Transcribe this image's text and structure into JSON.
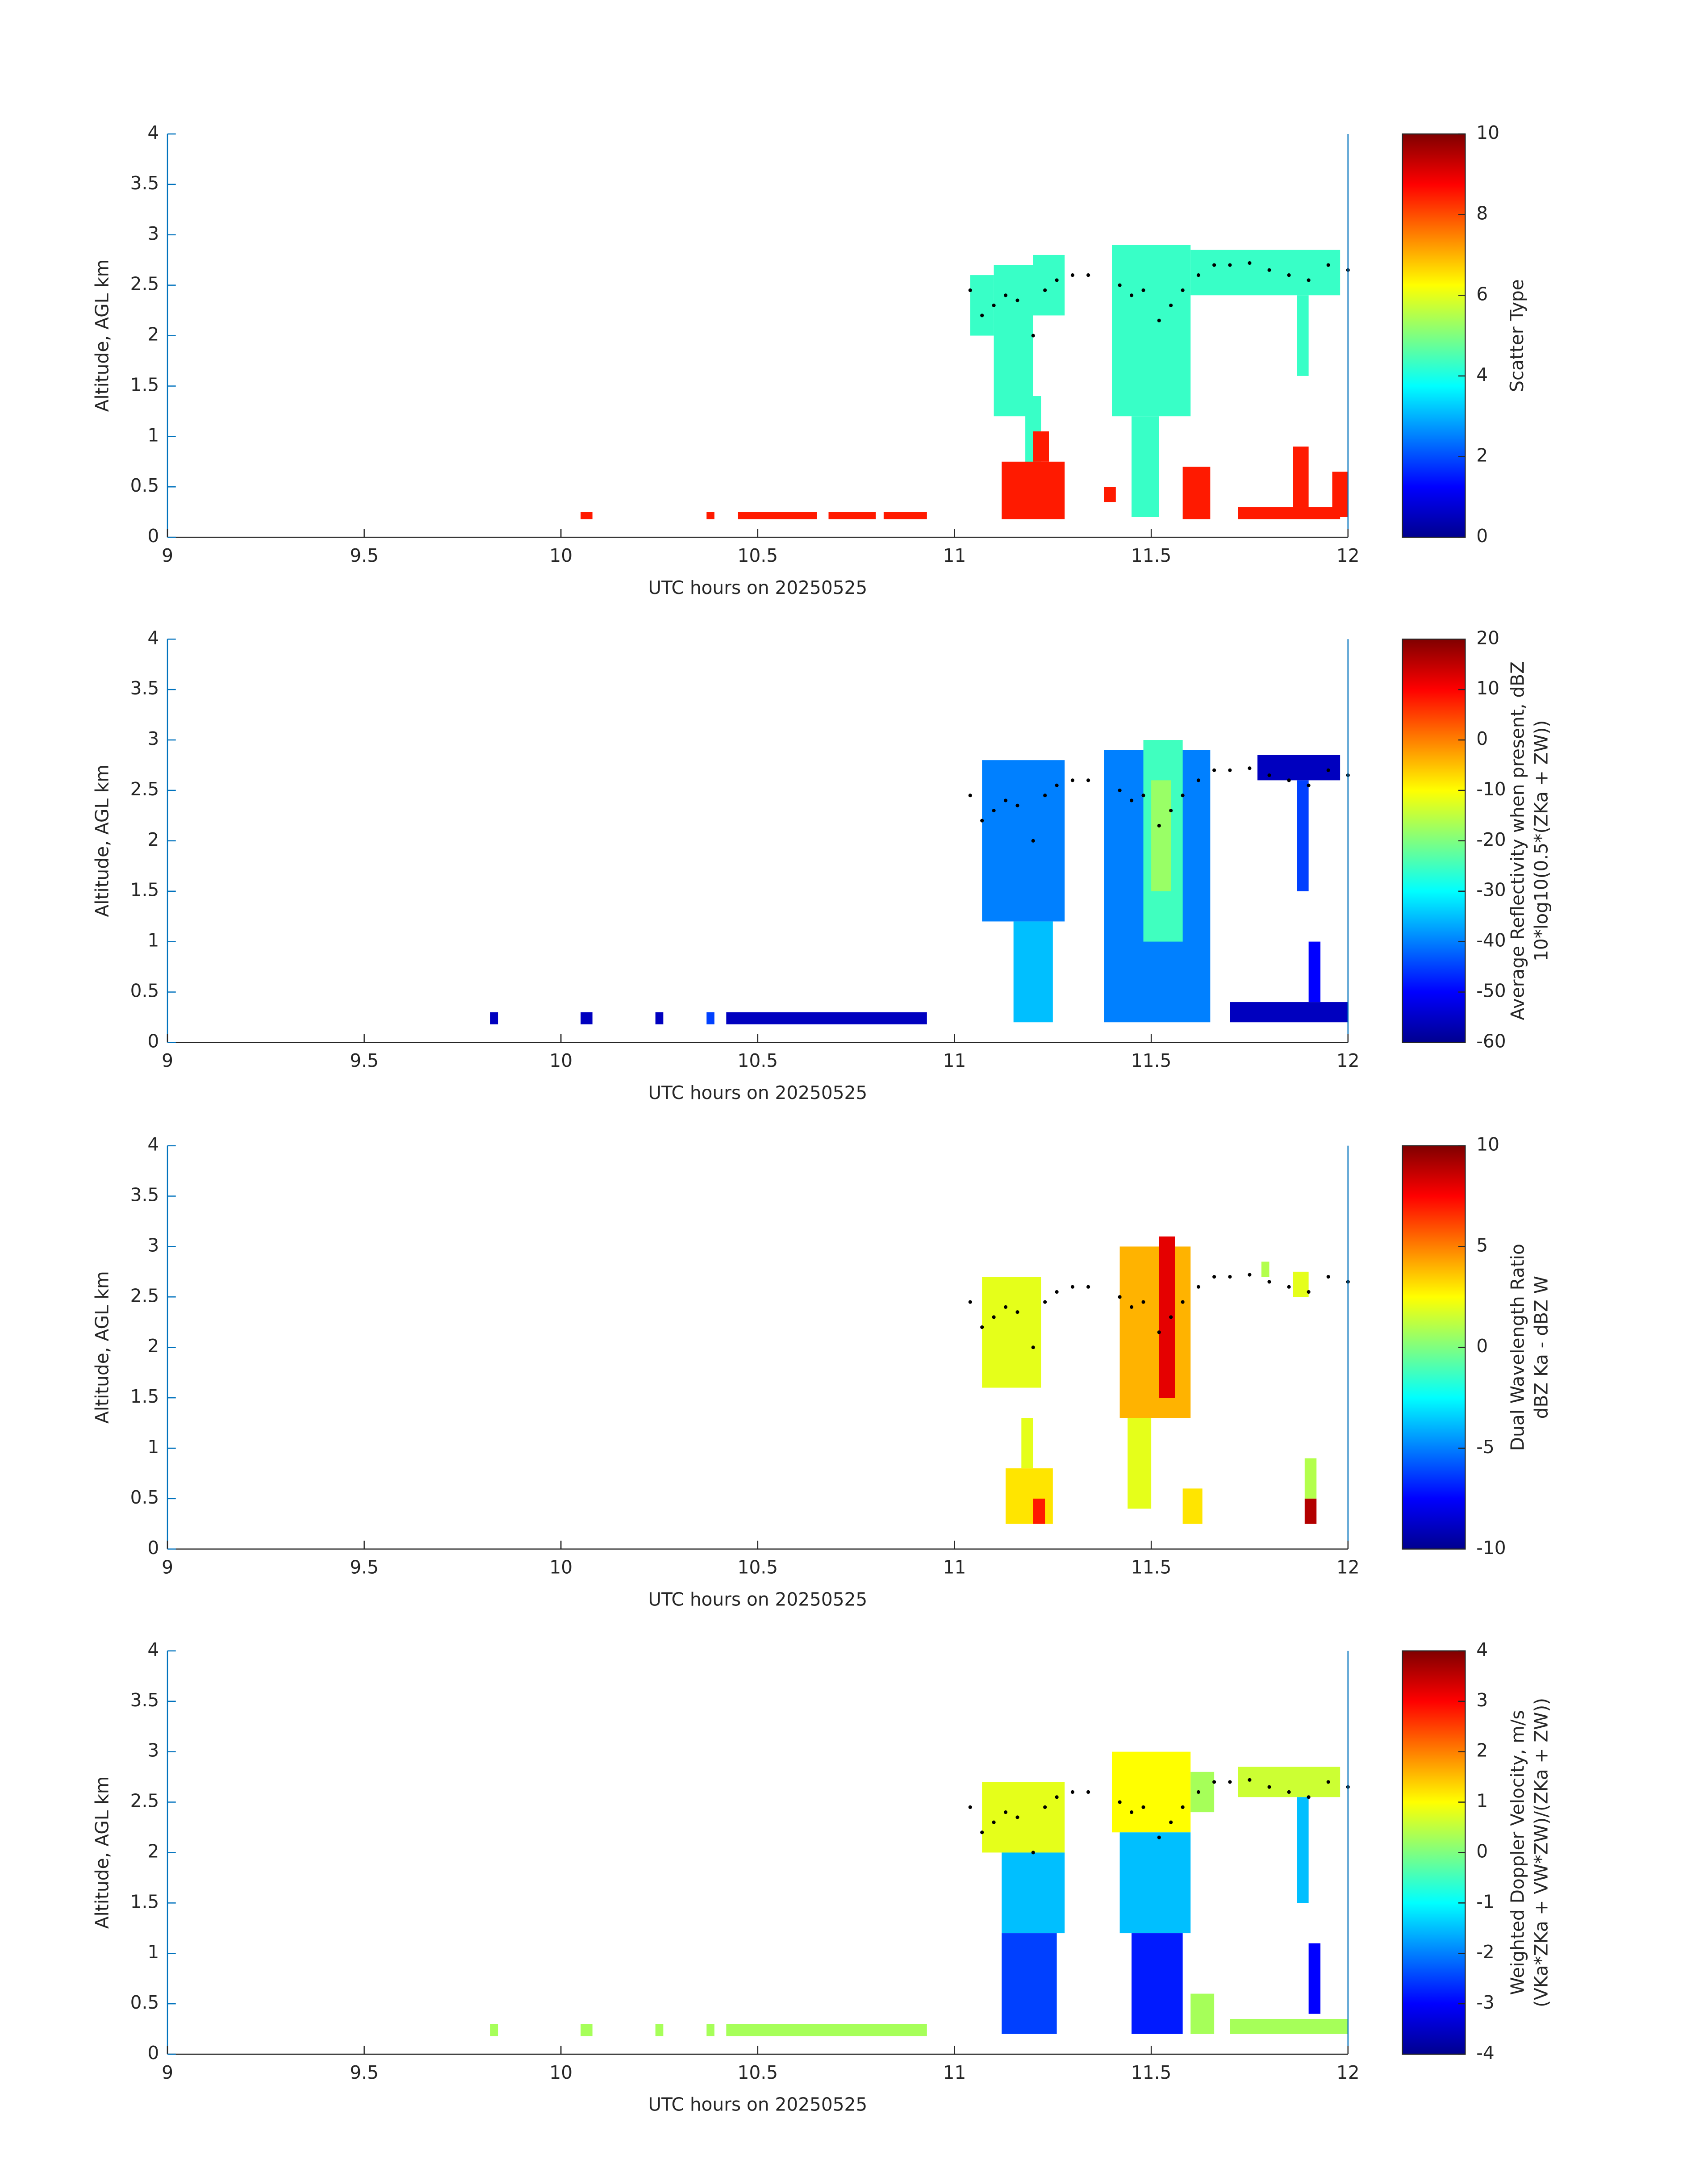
{
  "chart_data": [
    {
      "type": "heatmap",
      "ylabel": "Altitude, AGL km",
      "xlabel": "UTC hours on 20250525",
      "xlim": [
        9,
        12
      ],
      "ylim": [
        0,
        4
      ],
      "xticks": [
        9,
        9.5,
        10,
        10.5,
        11,
        11.5,
        12
      ],
      "yticks": [
        0,
        0.5,
        1,
        1.5,
        2,
        2.5,
        3,
        3.5,
        4
      ],
      "colormap": "jet",
      "colorbar_label": [
        "Scatter Type"
      ],
      "clim": [
        0,
        10
      ],
      "cticks": [
        0,
        2,
        4,
        6,
        8,
        10
      ],
      "cells": {
        "x0": [
          11.04,
          11.1,
          11.2,
          11.18,
          11.4,
          11.45,
          11.6,
          11.87,
          10.05,
          10.37,
          10.45,
          10.68,
          10.82,
          11.12,
          11.2,
          11.38,
          11.58,
          11.72,
          11.86,
          11.96
        ],
        "x1": [
          11.1,
          11.2,
          11.28,
          11.22,
          11.6,
          11.52,
          11.98,
          11.9,
          10.08,
          10.39,
          10.65,
          10.8,
          10.93,
          11.28,
          11.24,
          11.41,
          11.65,
          11.98,
          11.9,
          12.0
        ],
        "y0": [
          2.0,
          1.2,
          2.2,
          0.2,
          1.2,
          0.2,
          2.4,
          1.6,
          0.18,
          0.18,
          0.18,
          0.18,
          0.18,
          0.18,
          0.75,
          0.35,
          0.18,
          0.18,
          0.3,
          0.2
        ],
        "y1": [
          2.6,
          2.7,
          2.8,
          1.4,
          2.9,
          1.2,
          2.85,
          2.4,
          0.25,
          0.25,
          0.25,
          0.25,
          0.25,
          0.75,
          1.05,
          0.5,
          0.7,
          0.3,
          0.9,
          0.65
        ],
        "values": [
          4.3,
          4.3,
          4.3,
          4.3,
          4.3,
          4.3,
          4.3,
          4.3,
          8.5,
          8.5,
          8.5,
          8.5,
          8.5,
          8.5,
          8.5,
          8.5,
          8.5,
          8.5,
          8.5,
          8.5
        ]
      },
      "dots": {
        "x": [
          11.04,
          11.07,
          11.1,
          11.13,
          11.16,
          11.2,
          11.23,
          11.26,
          11.3,
          11.34,
          11.42,
          11.45,
          11.48,
          11.52,
          11.55,
          11.58,
          11.62,
          11.66,
          11.7,
          11.75,
          11.8,
          11.85,
          11.9,
          11.95,
          12.0
        ],
        "y": [
          2.45,
          2.2,
          2.3,
          2.4,
          2.35,
          2.0,
          2.45,
          2.55,
          2.6,
          2.6,
          2.5,
          2.4,
          2.45,
          2.15,
          2.3,
          2.45,
          2.6,
          2.7,
          2.7,
          2.72,
          2.65,
          2.6,
          2.55,
          2.7,
          2.65
        ]
      }
    },
    {
      "type": "heatmap",
      "ylabel": "Altitude, AGL km",
      "xlabel": "UTC hours on 20250525",
      "xlim": [
        9,
        12
      ],
      "ylim": [
        0,
        4
      ],
      "xticks": [
        9,
        9.5,
        10,
        10.5,
        11,
        11.5,
        12
      ],
      "yticks": [
        0,
        0.5,
        1,
        1.5,
        2,
        2.5,
        3,
        3.5,
        4
      ],
      "colormap": "jet",
      "colorbar_label": [
        "Average Reflectivity when present, dBZ",
        "10*log10(0.5*(ZKa + ZW))"
      ],
      "clim": [
        -60,
        20
      ],
      "cticks": [
        -60,
        -50,
        -40,
        -30,
        -20,
        -10,
        0,
        10,
        20
      ],
      "cells": {
        "x0": [
          9.82,
          10.05,
          10.24,
          10.37,
          10.42,
          11.07,
          11.15,
          11.38,
          11.48,
          11.5,
          11.77,
          11.87,
          11.7,
          11.9
        ],
        "x1": [
          9.84,
          10.08,
          10.26,
          10.39,
          10.93,
          11.28,
          11.25,
          11.65,
          11.58,
          11.55,
          11.98,
          11.9,
          12.0,
          11.93
        ],
        "y0": [
          0.18,
          0.18,
          0.18,
          0.18,
          0.18,
          1.2,
          0.2,
          0.2,
          1.0,
          1.5,
          2.6,
          1.5,
          0.2,
          0.4
        ],
        "y1": [
          0.3,
          0.3,
          0.3,
          0.3,
          0.3,
          2.8,
          1.2,
          2.9,
          3.0,
          2.6,
          2.85,
          2.6,
          0.4,
          1.0
        ],
        "values": [
          -55,
          -55,
          -55,
          -45,
          -55,
          -40,
          -35,
          -40,
          -25,
          -18,
          -55,
          -45,
          -55,
          -50
        ]
      },
      "dots": {
        "x": [
          11.04,
          11.07,
          11.1,
          11.13,
          11.16,
          11.2,
          11.23,
          11.26,
          11.3,
          11.34,
          11.42,
          11.45,
          11.48,
          11.52,
          11.55,
          11.58,
          11.62,
          11.66,
          11.7,
          11.75,
          11.8,
          11.85,
          11.9,
          11.95,
          12.0
        ],
        "y": [
          2.45,
          2.2,
          2.3,
          2.4,
          2.35,
          2.0,
          2.45,
          2.55,
          2.6,
          2.6,
          2.5,
          2.4,
          2.45,
          2.15,
          2.3,
          2.45,
          2.6,
          2.7,
          2.7,
          2.72,
          2.65,
          2.6,
          2.55,
          2.7,
          2.65
        ]
      }
    },
    {
      "type": "heatmap",
      "ylabel": "Altitude, AGL km",
      "xlabel": "UTC hours on 20250525",
      "xlim": [
        9,
        12
      ],
      "ylim": [
        0,
        4
      ],
      "xticks": [
        9,
        9.5,
        10,
        10.5,
        11,
        11.5,
        12
      ],
      "yticks": [
        0,
        0.5,
        1,
        1.5,
        2,
        2.5,
        3,
        3.5,
        4
      ],
      "colormap": "jet",
      "colorbar_label": [
        "Dual Wavelength Ratio",
        "dBZ Ka - dBZ W"
      ],
      "clim": [
        -10,
        10
      ],
      "cticks": [
        -10,
        -5,
        0,
        5,
        10
      ],
      "cells": {
        "x0": [
          11.07,
          11.13,
          11.2,
          11.17,
          11.42,
          11.52,
          11.44,
          11.58,
          11.78,
          11.86,
          11.89,
          11.89
        ],
        "x1": [
          11.22,
          11.25,
          11.23,
          11.2,
          11.6,
          11.56,
          11.5,
          11.63,
          11.8,
          11.9,
          11.92,
          11.92
        ],
        "y0": [
          1.6,
          0.25,
          0.25,
          0.8,
          1.3,
          1.5,
          0.4,
          0.25,
          2.7,
          2.5,
          0.5,
          0.25
        ],
        "y1": [
          2.7,
          0.8,
          0.5,
          1.3,
          3.0,
          3.1,
          1.3,
          0.6,
          2.85,
          2.75,
          0.9,
          0.5
        ],
        "values": [
          2,
          3,
          7,
          2,
          4,
          8,
          2,
          3,
          1,
          2,
          1,
          9
        ]
      },
      "dots": {
        "x": [
          11.04,
          11.07,
          11.1,
          11.13,
          11.16,
          11.2,
          11.23,
          11.26,
          11.3,
          11.34,
          11.42,
          11.45,
          11.48,
          11.52,
          11.55,
          11.58,
          11.62,
          11.66,
          11.7,
          11.75,
          11.8,
          11.85,
          11.9,
          11.95,
          12.0
        ],
        "y": [
          2.45,
          2.2,
          2.3,
          2.4,
          2.35,
          2.0,
          2.45,
          2.55,
          2.6,
          2.6,
          2.5,
          2.4,
          2.45,
          2.15,
          2.3,
          2.45,
          2.6,
          2.7,
          2.7,
          2.72,
          2.65,
          2.6,
          2.55,
          2.7,
          2.65
        ]
      }
    },
    {
      "type": "heatmap",
      "ylabel": "Altitude, AGL km",
      "xlabel": "UTC hours on 20250525",
      "xlim": [
        9,
        12
      ],
      "ylim": [
        0,
        4
      ],
      "xticks": [
        9,
        9.5,
        10,
        10.5,
        11,
        11.5,
        12
      ],
      "yticks": [
        0,
        0.5,
        1,
        1.5,
        2,
        2.5,
        3,
        3.5,
        4
      ],
      "colormap": "jet",
      "colorbar_label": [
        "Weighted Doppler Velocity, m/s",
        "(VKa*ZKa + VW*ZW)/(ZKa + ZW))"
      ],
      "clim": [
        -4,
        4
      ],
      "cticks": [
        -4,
        -3,
        -2,
        -1,
        0,
        1,
        2,
        3,
        4
      ],
      "cells": {
        "x0": [
          9.82,
          10.05,
          10.24,
          10.37,
          10.42,
          11.07,
          11.12,
          11.12,
          11.4,
          11.42,
          11.45,
          11.6,
          11.72,
          11.87,
          11.9,
          11.7,
          11.6
        ],
        "x1": [
          9.84,
          10.08,
          10.26,
          10.39,
          10.93,
          11.28,
          11.28,
          11.26,
          11.6,
          11.6,
          11.58,
          11.66,
          11.98,
          11.9,
          11.93,
          12.0,
          11.66
        ],
        "y0": [
          0.18,
          0.18,
          0.18,
          0.18,
          0.18,
          2.0,
          1.2,
          0.2,
          2.2,
          1.2,
          0.2,
          2.4,
          2.55,
          1.5,
          0.4,
          0.2,
          0.2
        ],
        "y1": [
          0.3,
          0.3,
          0.3,
          0.3,
          0.3,
          2.7,
          2.0,
          1.2,
          3.0,
          2.2,
          1.2,
          2.8,
          2.85,
          2.55,
          1.1,
          0.35,
          0.6
        ],
        "values": [
          0.3,
          0.3,
          0.3,
          0.3,
          0.3,
          0.8,
          -1.5,
          -2.5,
          1.0,
          -1.5,
          -2.8,
          0.3,
          0.6,
          -1.5,
          -3,
          0.3,
          0.3
        ]
      },
      "dots": {
        "x": [
          11.04,
          11.07,
          11.1,
          11.13,
          11.16,
          11.2,
          11.23,
          11.26,
          11.3,
          11.34,
          11.42,
          11.45,
          11.48,
          11.52,
          11.55,
          11.58,
          11.62,
          11.66,
          11.7,
          11.75,
          11.8,
          11.85,
          11.9,
          11.95,
          12.0
        ],
        "y": [
          2.45,
          2.2,
          2.3,
          2.4,
          2.35,
          2.0,
          2.45,
          2.55,
          2.6,
          2.6,
          2.5,
          2.4,
          2.45,
          2.15,
          2.3,
          2.45,
          2.6,
          2.7,
          2.7,
          2.72,
          2.65,
          2.6,
          2.55,
          2.7,
          2.65
        ]
      }
    }
  ]
}
